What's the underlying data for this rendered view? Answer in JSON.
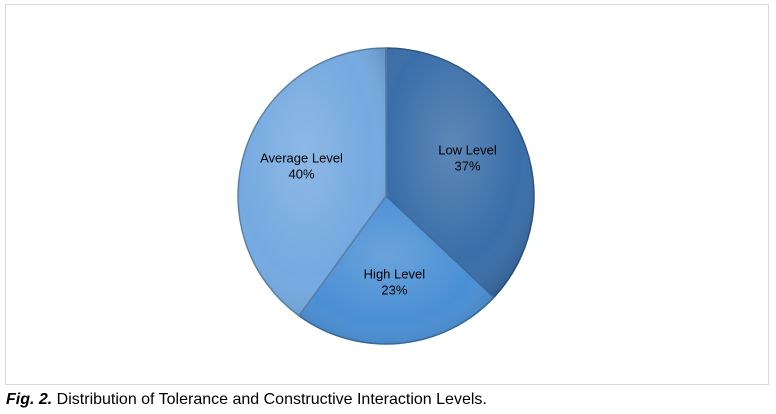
{
  "chart_data": {
    "type": "pie",
    "slices": [
      {
        "label": "Low Level",
        "value": 37,
        "value_text": "37%",
        "color": "#3a6ea8"
      },
      {
        "label": "High Level",
        "value": 23,
        "value_text": "23%",
        "color": "#4a8fd4"
      },
      {
        "label": "Average Level",
        "value": 40,
        "value_text": "40%",
        "color": "#75a9e0"
      }
    ],
    "start": "12 o'clock",
    "direction": "clockwise",
    "legend": "none",
    "data_labels": "inside"
  },
  "caption": {
    "label": "Fig. 2.",
    "text": " Distribution of Tolerance and Constructive Interaction Levels."
  }
}
